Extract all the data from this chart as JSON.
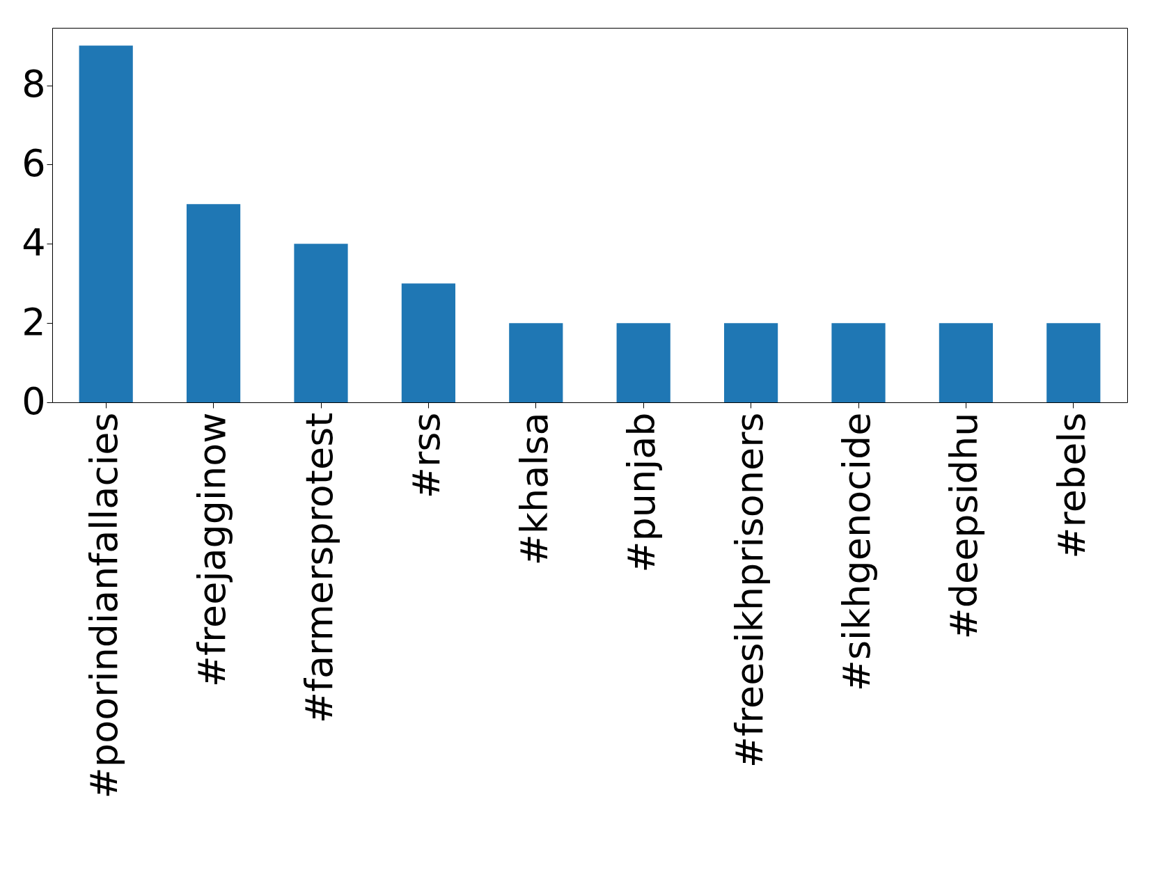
{
  "chart_data": {
    "type": "bar",
    "categories": [
      "#poorindianfallacies",
      "#freejagginow",
      "#farmersprotest",
      "#rss",
      "#khalsa",
      "#punjab",
      "#freesikhprisoners",
      "#sikhgenocide",
      "#deepsidhu",
      "#rebels"
    ],
    "values": [
      9,
      5,
      4,
      3,
      2,
      2,
      2,
      2,
      2,
      2
    ],
    "color": "#1f77b4",
    "ylim": [
      0,
      9.45
    ],
    "yticks": [
      0,
      2,
      4,
      6,
      8
    ],
    "grid": false
  }
}
